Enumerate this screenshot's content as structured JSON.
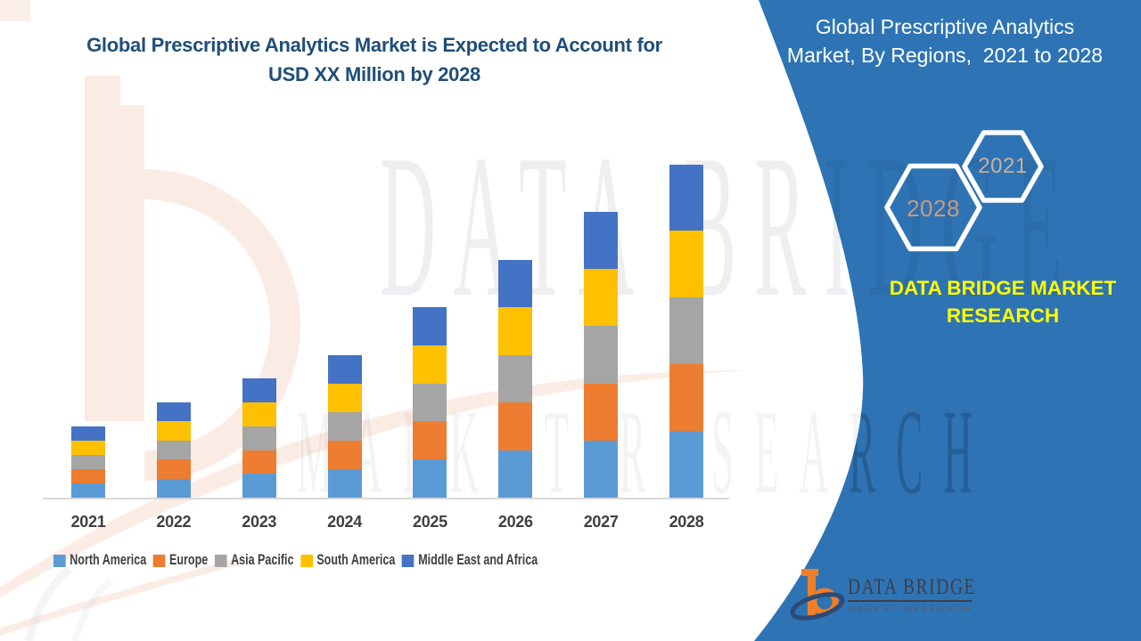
{
  "title": {
    "line1": "Global Prescriptive Analytics Market is Expected to Account for",
    "line2": "USD XX Million by 2028"
  },
  "side_panel": {
    "heading_line1": "Global Prescriptive Analytics",
    "heading_line2": "Market, By Regions,  2021 to 2028",
    "hexagon_back_label": "2028",
    "hexagon_front_label": "2021",
    "brand_line1": "DATA BRIDGE MARKET",
    "brand_line2": "RESEARCH",
    "panel_color": "#2E74B5",
    "brand_text_color": "#FFFF00",
    "hexagon_back_label_color": "#C89B7B",
    "hexagon_front_label_color": "#CFAE98"
  },
  "logo": {
    "title": "DATA BRIDGE",
    "subtitle": "MARKET RESEARCH"
  },
  "watermark": {
    "line1": "DATA BRIDGE",
    "line2": "MARKET RESEARCH"
  },
  "chart_data": {
    "type": "bar",
    "stacked": true,
    "categories": [
      "2021",
      "2022",
      "2023",
      "2024",
      "2025",
      "2026",
      "2027",
      "2028"
    ],
    "series": [
      {
        "name": "North America",
        "color": "#5B9BD5",
        "values": [
          0.3,
          0.4,
          0.5,
          0.6,
          0.8,
          1.0,
          1.2,
          1.4
        ]
      },
      {
        "name": "Europe",
        "color": "#ED7D31",
        "values": [
          0.3,
          0.4,
          0.5,
          0.6,
          0.8,
          1.0,
          1.2,
          1.4
        ]
      },
      {
        "name": "Asia Pacific",
        "color": "#A5A5A5",
        "values": [
          0.3,
          0.4,
          0.5,
          0.6,
          0.8,
          1.0,
          1.2,
          1.4
        ]
      },
      {
        "name": "South America",
        "color": "#FFC000",
        "values": [
          0.3,
          0.4,
          0.5,
          0.6,
          0.8,
          1.0,
          1.2,
          1.4
        ]
      },
      {
        "name": "Middle East and Africa",
        "color": "#4472C4",
        "values": [
          0.3,
          0.4,
          0.5,
          0.6,
          0.8,
          1.0,
          1.2,
          1.4
        ]
      }
    ],
    "title": "Global Prescriptive Analytics Market is Expected to Account for USD XX Million by 2028",
    "xlabel": "",
    "ylabel": "",
    "ylim": [
      0,
      7.5
    ],
    "grid": false,
    "legend_position": "bottom",
    "axis_color": "#D9D9D9",
    "label_color": "#404040"
  }
}
